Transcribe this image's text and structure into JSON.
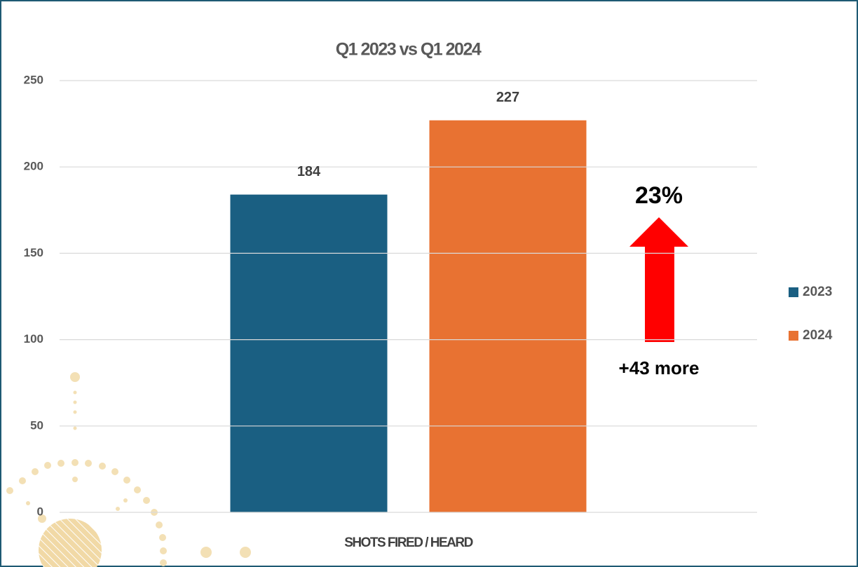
{
  "chart_data": {
    "type": "bar",
    "title": "Q1 2023 vs Q1 2024",
    "categories": [
      "SHOTS FIRED / HEARD"
    ],
    "series": [
      {
        "name": "2023",
        "color": "#1a5f82",
        "values": [
          184
        ]
      },
      {
        "name": "2024",
        "color": "#e87232",
        "values": [
          227
        ]
      }
    ],
    "ylim": [
      0,
      250
    ],
    "yticks": [
      0,
      50,
      100,
      150,
      200,
      250
    ],
    "grid": true,
    "legend": "right",
    "annotations": [
      "23%",
      "+43 more"
    ],
    "annotation_color": "#ff0000"
  }
}
